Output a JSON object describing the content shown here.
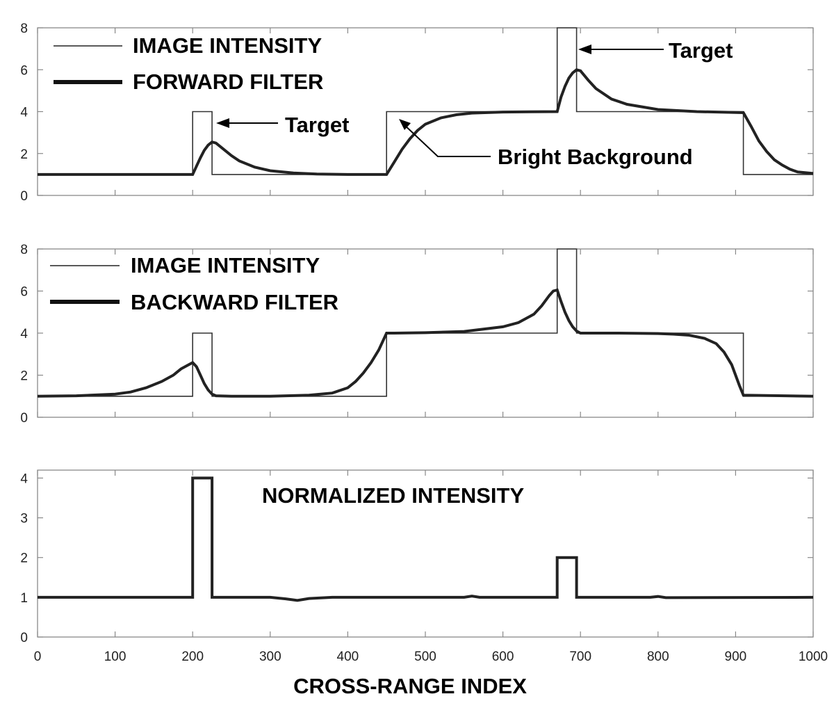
{
  "chart_data": [
    {
      "type": "line",
      "panel": "forward",
      "xlim": [
        0,
        1000
      ],
      "ylim": [
        0,
        8
      ],
      "yticks": [
        0,
        2,
        4,
        6,
        8
      ],
      "xticks": [
        0,
        100,
        200,
        300,
        400,
        500,
        600,
        700,
        800,
        900,
        1000
      ],
      "xtick_labels_shown": false,
      "grid": false,
      "legend_placement": "top-left",
      "series": [
        {
          "name": "IMAGE INTENSITY",
          "style": "thin",
          "x": [
            0,
            200,
            200,
            225,
            225,
            450,
            450,
            670,
            670,
            695,
            695,
            910,
            910,
            1000
          ],
          "y": [
            1,
            1,
            4,
            4,
            1,
            1,
            4,
            4,
            8,
            8,
            4,
            4,
            1,
            1
          ]
        },
        {
          "name": "FORWARD FILTER",
          "style": "thick",
          "x": [
            0,
            200,
            205,
            210,
            215,
            220,
            225,
            230,
            240,
            250,
            260,
            280,
            300,
            330,
            360,
            400,
            450,
            460,
            470,
            480,
            490,
            500,
            520,
            540,
            560,
            600,
            670,
            675,
            680,
            685,
            690,
            695,
            700,
            710,
            720,
            740,
            760,
            800,
            850,
            910,
            920,
            930,
            940,
            950,
            960,
            970,
            980,
            1000
          ],
          "y": [
            1,
            1,
            1.4,
            1.8,
            2.15,
            2.4,
            2.55,
            2.5,
            2.2,
            1.9,
            1.65,
            1.35,
            1.18,
            1.07,
            1.02,
            1.0,
            1.0,
            1.6,
            2.2,
            2.7,
            3.1,
            3.4,
            3.7,
            3.85,
            3.93,
            3.98,
            4.0,
            4.7,
            5.2,
            5.6,
            5.85,
            6.0,
            5.95,
            5.5,
            5.1,
            4.6,
            4.35,
            4.1,
            4.0,
            3.95,
            3.3,
            2.6,
            2.1,
            1.7,
            1.45,
            1.25,
            1.12,
            1.05
          ]
        }
      ],
      "annotations": [
        {
          "text": "Target",
          "points_to": [
            225,
            3.5
          ]
        },
        {
          "text": "Target",
          "points_to": [
            695,
            7.3
          ]
        },
        {
          "text": "Bright Background",
          "points_to": [
            460,
            2.8
          ]
        }
      ]
    },
    {
      "type": "line",
      "panel": "backward",
      "xlim": [
        0,
        1000
      ],
      "ylim": [
        0,
        8
      ],
      "yticks": [
        0,
        2,
        4,
        6,
        8
      ],
      "xticks": [
        0,
        100,
        200,
        300,
        400,
        500,
        600,
        700,
        800,
        900,
        1000
      ],
      "xtick_labels_shown": false,
      "grid": false,
      "legend_placement": "top-left",
      "series": [
        {
          "name": "IMAGE INTENSITY",
          "style": "thin",
          "x": [
            0,
            200,
            200,
            225,
            225,
            450,
            450,
            670,
            670,
            695,
            695,
            910,
            910,
            1000
          ],
          "y": [
            1,
            1,
            4,
            4,
            1,
            1,
            4,
            4,
            8,
            8,
            4,
            4,
            1,
            1
          ]
        },
        {
          "name": "BACKWARD FILTER",
          "style": "thick",
          "x": [
            0,
            50,
            100,
            120,
            140,
            160,
            175,
            185,
            195,
            200,
            205,
            210,
            215,
            220,
            225,
            230,
            250,
            300,
            350,
            380,
            400,
            410,
            420,
            430,
            440,
            450,
            460,
            500,
            550,
            600,
            620,
            640,
            650,
            660,
            665,
            670,
            675,
            680,
            685,
            690,
            695,
            700,
            750,
            800,
            820,
            840,
            860,
            875,
            885,
            895,
            900,
            905,
            910,
            1000
          ],
          "y": [
            1.0,
            1.02,
            1.1,
            1.2,
            1.4,
            1.7,
            2.0,
            2.3,
            2.5,
            2.6,
            2.4,
            2.0,
            1.6,
            1.3,
            1.1,
            1.02,
            1.0,
            1.0,
            1.05,
            1.15,
            1.4,
            1.7,
            2.1,
            2.6,
            3.2,
            4.0,
            4.0,
            4.02,
            4.08,
            4.3,
            4.5,
            4.9,
            5.3,
            5.8,
            6.0,
            6.05,
            5.5,
            5.0,
            4.6,
            4.3,
            4.1,
            4.0,
            4.0,
            3.98,
            3.95,
            3.9,
            3.75,
            3.5,
            3.1,
            2.5,
            2.0,
            1.5,
            1.05,
            1.0
          ]
        }
      ]
    },
    {
      "type": "line",
      "panel": "normalized",
      "xlim": [
        0,
        1000
      ],
      "ylim": [
        0,
        4.2
      ],
      "yticks": [
        0,
        1,
        2,
        3,
        4
      ],
      "xticks": [
        0,
        100,
        200,
        300,
        400,
        500,
        600,
        700,
        800,
        900,
        1000
      ],
      "xtick_labels_shown": true,
      "xlabel": "CROSS-RANGE INDEX",
      "title": "NORMALIZED INTENSITY",
      "grid": false,
      "series": [
        {
          "style": "thick",
          "x": [
            0,
            200,
            200,
            225,
            225,
            300,
            320,
            335,
            350,
            380,
            450,
            550,
            560,
            570,
            670,
            670,
            695,
            695,
            790,
            800,
            810,
            1000
          ],
          "y": [
            1.0,
            1.0,
            4.0,
            4.0,
            1.0,
            1.0,
            0.96,
            0.92,
            0.97,
            1.0,
            1.0,
            1.0,
            1.03,
            1.0,
            1.0,
            2.0,
            2.0,
            1.0,
            1.0,
            1.02,
            0.99,
            1.0
          ]
        }
      ]
    }
  ],
  "panels": {
    "top": {
      "legend": [
        "IMAGE INTENSITY",
        "FORWARD FILTER"
      ],
      "annotations": [
        "Target",
        "Target",
        "Bright Background"
      ],
      "yticklabels": [
        "0",
        "2",
        "4",
        "6",
        "8"
      ]
    },
    "middle": {
      "legend": [
        "IMAGE INTENSITY",
        "BACKWARD FILTER"
      ],
      "yticklabels": [
        "0",
        "2",
        "4",
        "6",
        "8"
      ]
    },
    "bottom": {
      "title": "NORMALIZED INTENSITY",
      "yticklabels": [
        "0",
        "1",
        "2",
        "3",
        "4"
      ],
      "xticklabels": [
        "0",
        "100",
        "200",
        "300",
        "400",
        "500",
        "600",
        "700",
        "800",
        "900",
        "1000"
      ],
      "xlabel": "CROSS-RANGE INDEX"
    }
  }
}
